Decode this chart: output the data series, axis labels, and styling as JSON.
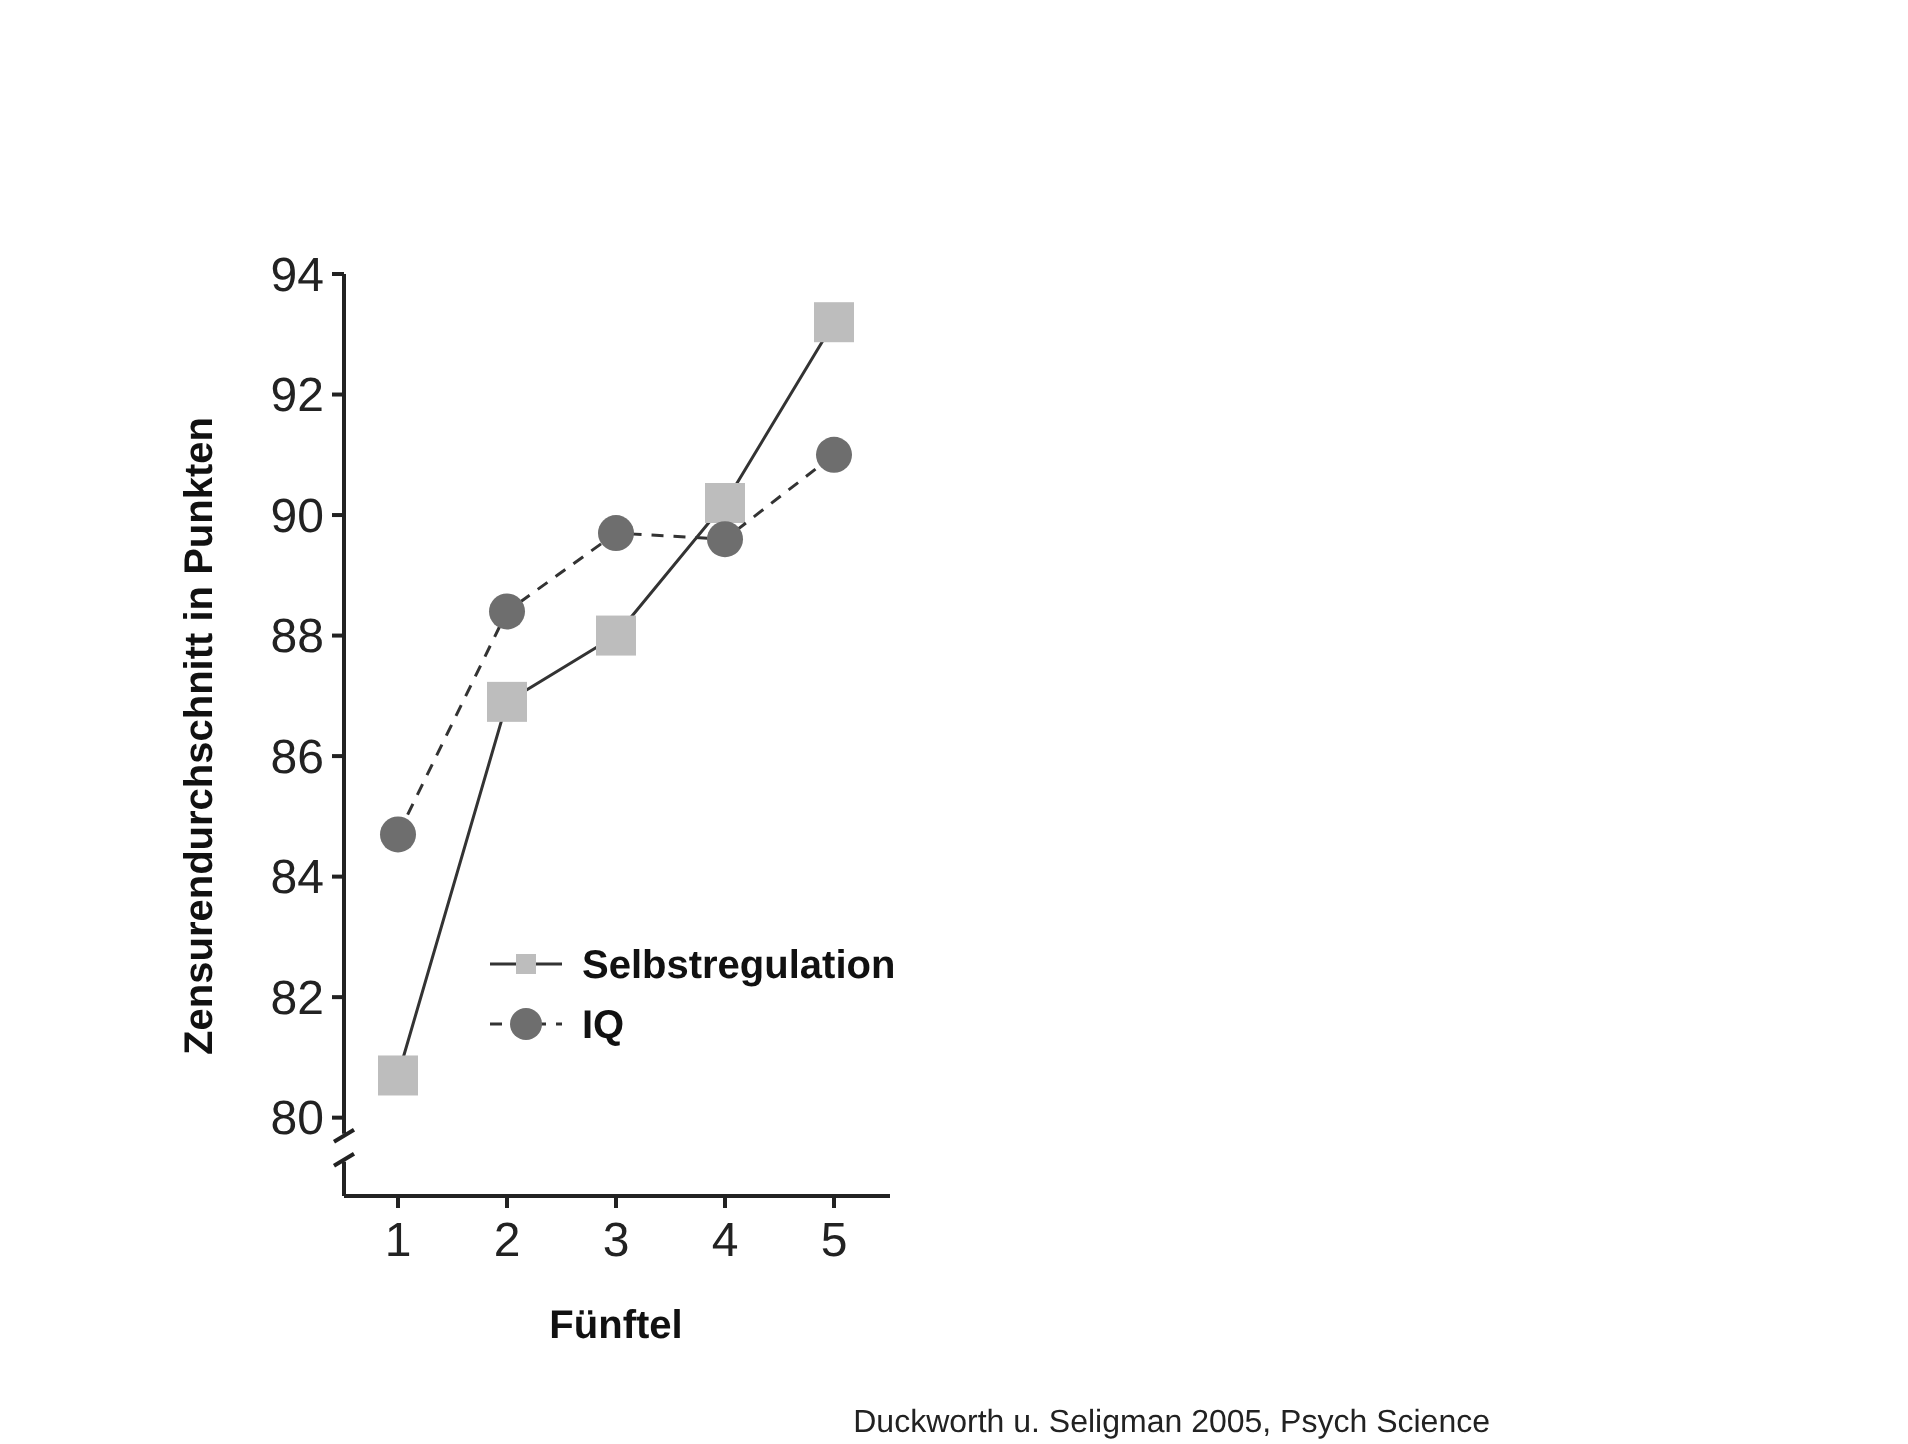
{
  "chart_data": {
    "type": "line",
    "xlabel": "Fünftel",
    "ylabel": "Zensurendurchschnitt in Punkten",
    "categories": [
      "1",
      "2",
      "3",
      "4",
      "5"
    ],
    "series": [
      {
        "name": "Selbstregulation",
        "color": "#bdbdbd",
        "marker": "square",
        "line_style": "solid",
        "values": [
          80.7,
          86.9,
          88.0,
          90.2,
          93.2
        ]
      },
      {
        "name": "IQ",
        "color": "#6e6e6e",
        "marker": "circle",
        "line_style": "dashed",
        "values": [
          84.7,
          88.4,
          89.7,
          89.6,
          91.0
        ]
      }
    ],
    "ylim": [
      78.7,
      94
    ],
    "yticks": [
      80,
      82,
      84,
      86,
      88,
      90,
      92,
      94
    ],
    "grid": false,
    "legend": "bottom",
    "annotations": [
      "Duckworth u. Seligman 2005, Psych Science"
    ]
  }
}
